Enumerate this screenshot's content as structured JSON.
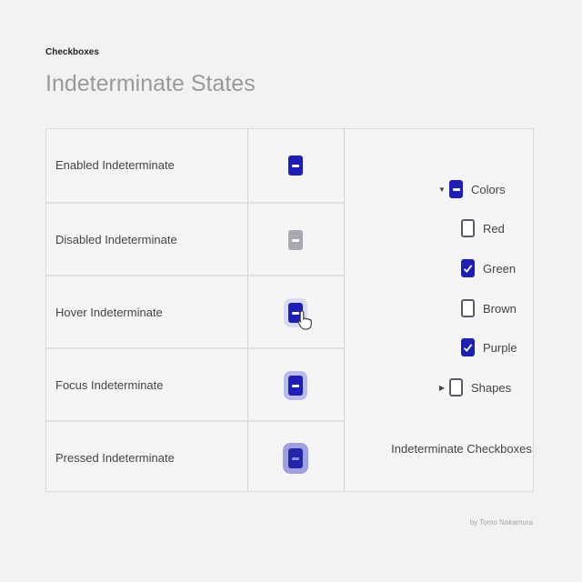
{
  "header": {
    "overline": "Checkboxes",
    "title": "Indeterminate States"
  },
  "states": [
    {
      "label": "Enabled Indeterminate",
      "state": "enabled"
    },
    {
      "label": "Disabled Indeterminate",
      "state": "disabled"
    },
    {
      "label": "Hover Indeterminate",
      "state": "hover"
    },
    {
      "label": "Focus Indeterminate",
      "state": "focus"
    },
    {
      "label": "Pressed Indeterminate",
      "state": "pressed"
    }
  ],
  "tree": {
    "caption": "Indeterminate Checkboxes",
    "colors": {
      "label": "Colors",
      "state": "indeterminate",
      "expanded": true
    },
    "children": [
      {
        "label": "Red",
        "checked": false
      },
      {
        "label": "Green",
        "checked": true
      },
      {
        "label": "Brown",
        "checked": false
      },
      {
        "label": "Purple",
        "checked": true
      }
    ],
    "shapes": {
      "label": "Shapes",
      "checked": false,
      "expanded": false
    }
  },
  "credit": "by Tomo Nakamura",
  "colors": {
    "accent": "#1b1fb8",
    "disabled": "#a9a9b3",
    "background": "#f2f2f2"
  }
}
